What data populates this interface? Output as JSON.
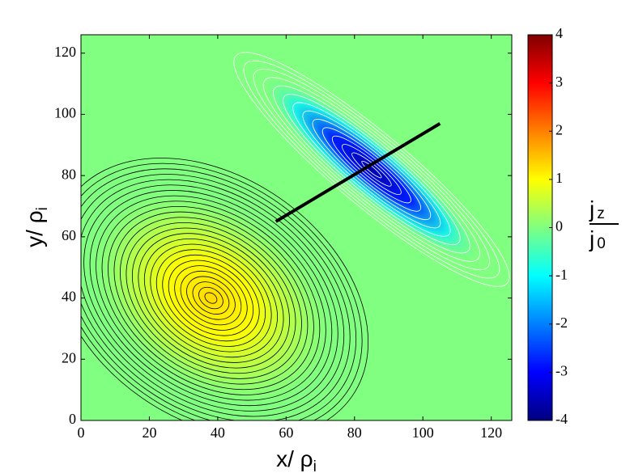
{
  "chart_data": {
    "type": "heatmap",
    "xlabel": "x/ ρ",
    "xlabel_sub": "i",
    "ylabel": "y/ ρ",
    "ylabel_sub": "i",
    "xlim": [
      0,
      126
    ],
    "ylim": [
      0,
      126
    ],
    "xticks": [
      0,
      20,
      40,
      60,
      80,
      100,
      120
    ],
    "yticks": [
      0,
      20,
      40,
      60,
      80,
      100,
      120
    ],
    "clim": [
      -4,
      4
    ],
    "cticks": [
      -4,
      -3,
      -2,
      -1,
      0,
      1,
      2,
      3,
      4
    ],
    "colorbar_label": {
      "numerator": "j",
      "numerator_sub": "z",
      "denominator": "j",
      "denominator_sub": "0"
    },
    "peaks": [
      {
        "x": 38,
        "y": 40,
        "value": 1.3
      },
      {
        "x": 85,
        "y": 82,
        "value": -3.7
      }
    ],
    "line": {
      "x": [
        57,
        105
      ],
      "y": [
        65,
        97
      ],
      "color": "#000000"
    }
  }
}
